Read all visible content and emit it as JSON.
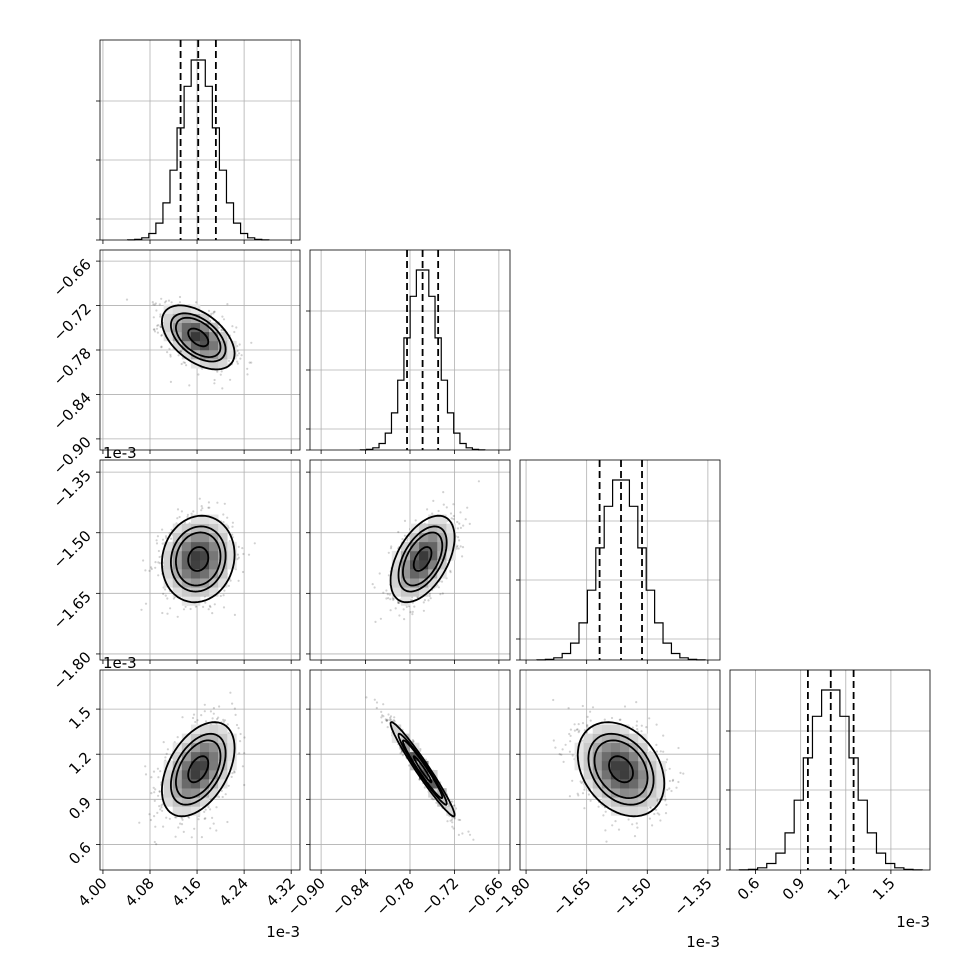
{
  "chart_data": {
    "type": "corner",
    "parameters": [
      {
        "range": [
          3.995,
          4.335
        ],
        "ticks": [
          "4.00",
          "4.08",
          "4.16",
          "4.24",
          "4.32"
        ],
        "tick_values": [
          4.0,
          4.08,
          4.16,
          4.24,
          4.32
        ],
        "offset": "1e-3",
        "quantiles": [
          4.132,
          4.162,
          4.192
        ],
        "mean": 4.162,
        "sd": 0.03
      },
      {
        "range": [
          -0.915,
          -0.645
        ],
        "ticks": [
          "−0.90",
          "−0.84",
          "−0.78",
          "−0.72",
          "−0.66"
        ],
        "tick_values": [
          -0.9,
          -0.84,
          -0.78,
          -0.72,
          -0.66
        ],
        "offset": "1e-3",
        "quantiles": [
          -0.784,
          -0.763,
          -0.742
        ],
        "mean": -0.763,
        "sd": 0.021
      },
      {
        "range": [
          -1.815,
          -1.32
        ],
        "ticks": [
          "−1.80",
          "−1.65",
          "−1.50",
          "−1.35"
        ],
        "tick_values": [
          -1.8,
          -1.65,
          -1.5,
          -1.35
        ],
        "offset": "1e-3",
        "quantiles": [
          -1.618,
          -1.565,
          -1.513
        ],
        "mean": -1.565,
        "sd": 0.052
      },
      {
        "range": [
          0.43,
          1.76
        ],
        "ticks": [
          "0.6",
          "0.9",
          "1.2",
          "1.5"
        ],
        "tick_values": [
          0.6,
          0.9,
          1.2,
          1.5
        ],
        "offset": "1e-3",
        "quantiles": [
          0.948,
          1.1,
          1.252
        ],
        "mean": 1.1,
        "sd": 0.152
      }
    ],
    "correlations": {
      "1-0": -0.5,
      "2-0": 0.1,
      "2-1": 0.5,
      "3-0": 0.45,
      "3-1": -0.97,
      "3-2": -0.3
    },
    "contour_levels": [
      0.12,
      0.3,
      0.45,
      0.85
    ],
    "grid": true,
    "styles": {
      "text": "#000000",
      "grid": "#b0b0b0",
      "points": "#000000",
      "line": "#000000"
    }
  }
}
